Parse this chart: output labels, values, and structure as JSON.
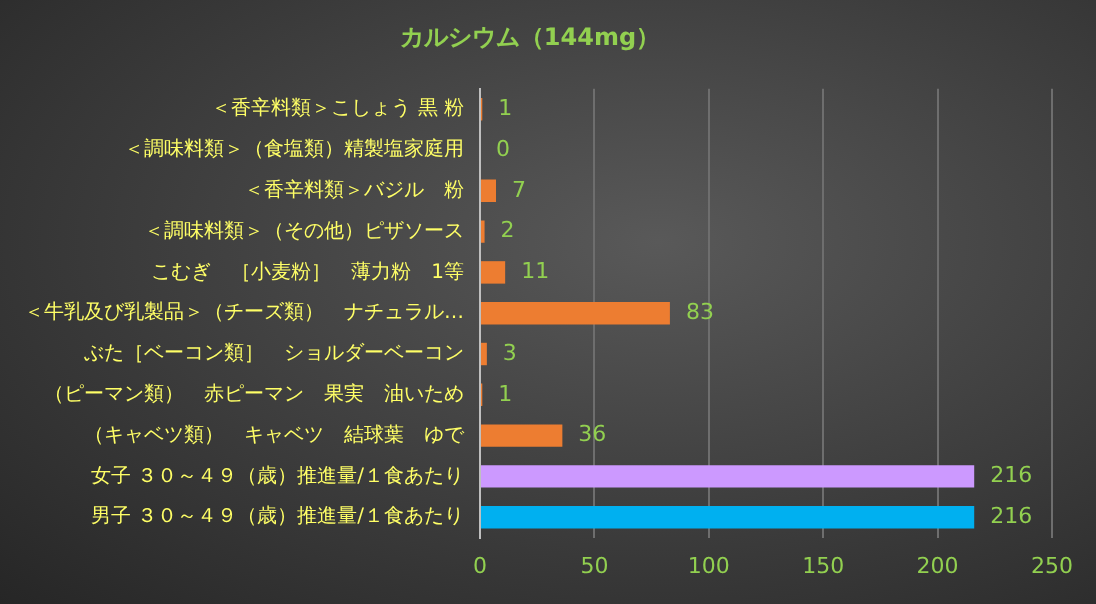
{
  "chart_data": {
    "type": "bar",
    "orientation": "horizontal",
    "title": "カルシウム（144mg）",
    "categories": [
      "＜香辛料類＞こしょう 黒 粉",
      "＜調味料類＞（食塩類）精製塩家庭用",
      "＜香辛料類＞バジル　粉",
      "＜調味料類＞（その他）ピザソース",
      "こむぎ　［小麦粉］　薄力粉　1等",
      "＜牛乳及び乳製品＞（チーズ類）　ナチュラル…",
      "ぶた［ベーコン類］　ショルダーベーコン",
      "（ピーマン類）　赤ピーマン　果実　油いため",
      "（キャベツ類）　キャベツ　結球葉　ゆで",
      "女子 ３０～４９（歳）推進量/１食あたり",
      "男子 ３０～４９（歳）推進量/１食あたり"
    ],
    "values": [
      1,
      0,
      7,
      2,
      11,
      83,
      3,
      1,
      36,
      216,
      216
    ],
    "colors": [
      "#ed7d31",
      "#ed7d31",
      "#ed7d31",
      "#ed7d31",
      "#ed7d31",
      "#ed7d31",
      "#ed7d31",
      "#ed7d31",
      "#ed7d31",
      "#cc99ff",
      "#00b0f0"
    ],
    "xlim": [
      0,
      250
    ],
    "xticks": [
      0,
      50,
      100,
      150,
      200,
      250
    ],
    "grid": "x",
    "legend": false,
    "data_labels": true
  }
}
